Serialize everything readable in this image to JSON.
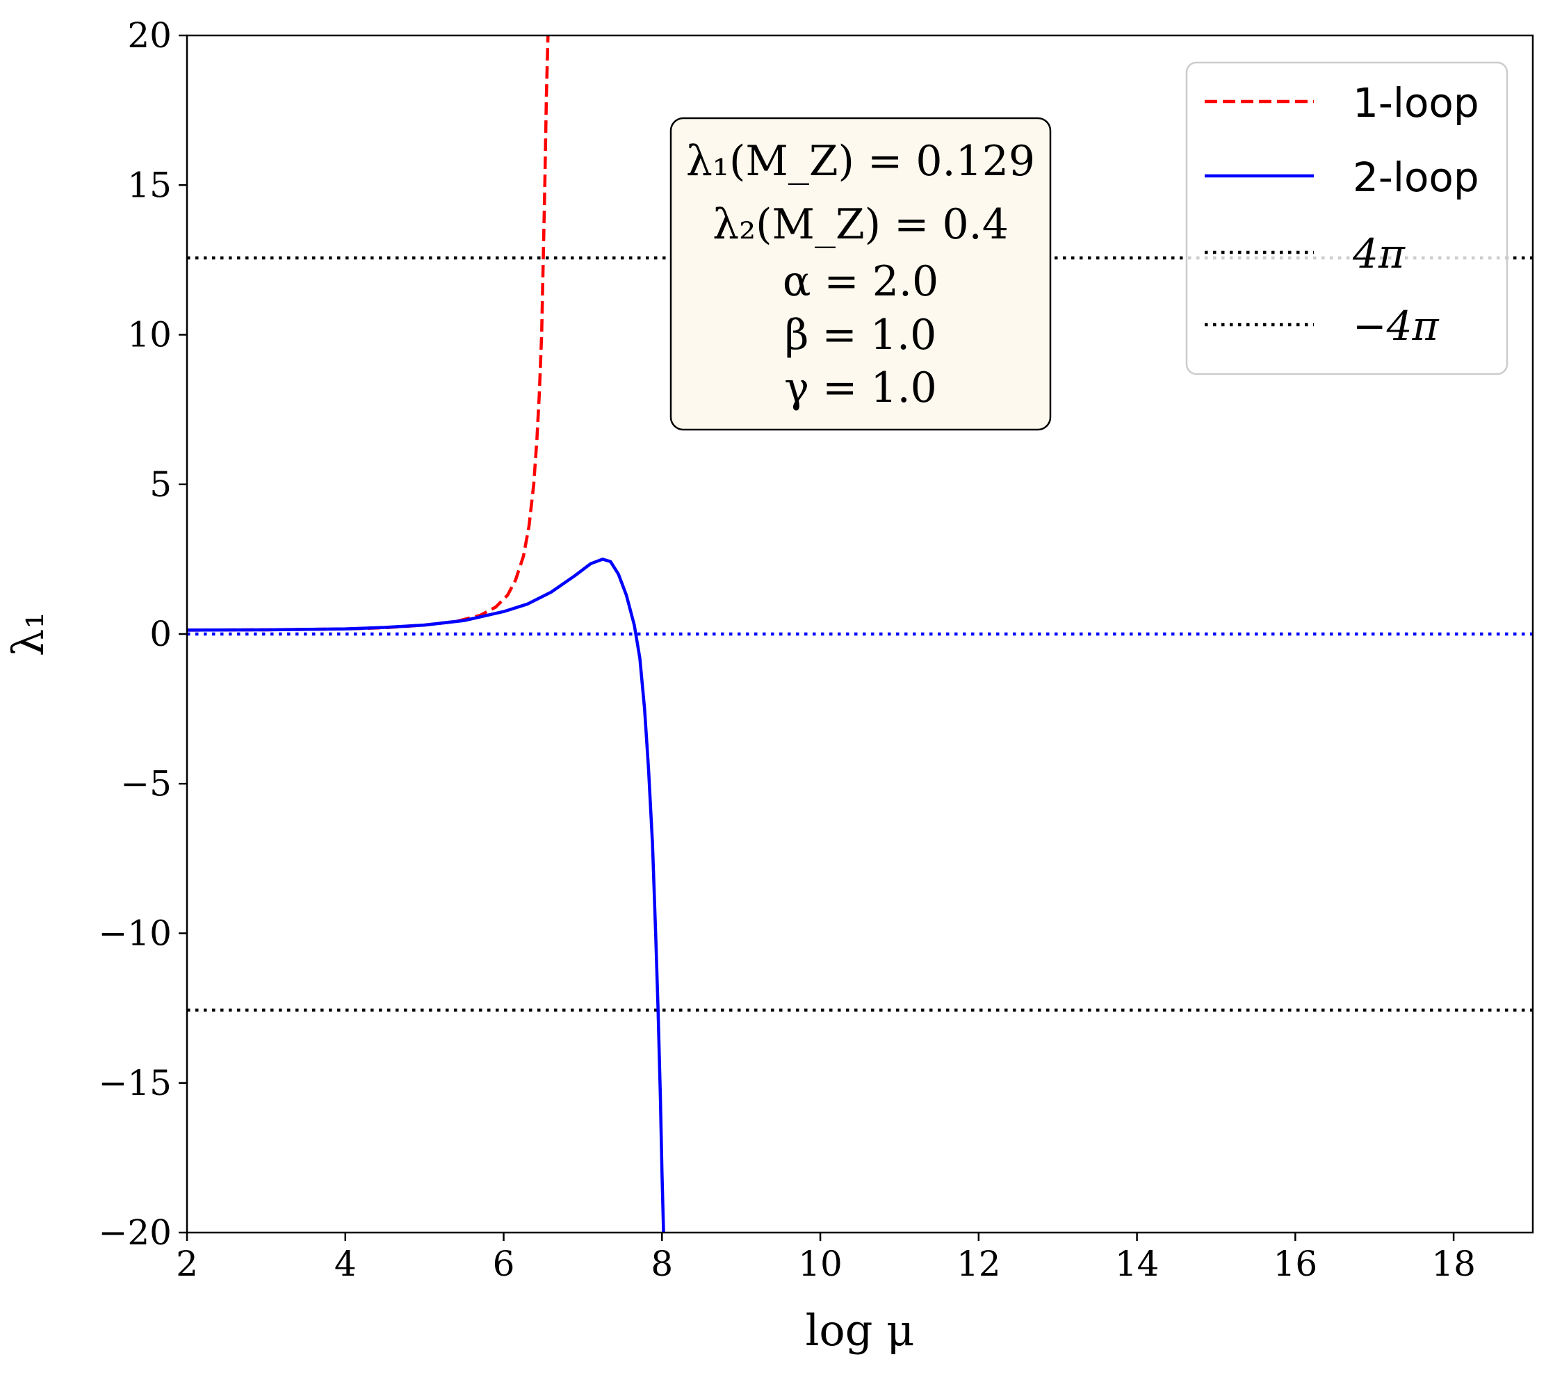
{
  "chart_data": {
    "type": "line",
    "xlabel": "log μ",
    "ylabel": "λ₁",
    "xlim": [
      2,
      19
    ],
    "ylim": [
      -20,
      20
    ],
    "xticks": [
      2,
      4,
      6,
      8,
      10,
      12,
      14,
      16,
      18
    ],
    "yticks": [
      -20,
      -15,
      -10,
      -5,
      0,
      5,
      10,
      15,
      20
    ],
    "xtick_labels": [
      "2",
      "4",
      "6",
      "8",
      "10",
      "12",
      "14",
      "16",
      "18"
    ],
    "ytick_labels": [
      "−20",
      "−15",
      "−10",
      "−5",
      "0",
      "5",
      "10",
      "15",
      "20"
    ],
    "grid": false,
    "legend_position": "top-right",
    "colors": {
      "one_loop": "#ff0000",
      "two_loop": "#0000ff",
      "bounds": "#000000",
      "zero_line": "#0000ff",
      "box_fill": "#fdf9ee"
    },
    "series": [
      {
        "name": "1-loop",
        "style": "dashed",
        "x": [
          2.0,
          3.0,
          4.0,
          4.5,
          5.0,
          5.4,
          5.7,
          5.9,
          6.05,
          6.15,
          6.25,
          6.32,
          6.38,
          6.42,
          6.45,
          6.48,
          6.5,
          6.52,
          6.54,
          6.56
        ],
        "y": [
          0.13,
          0.14,
          0.17,
          0.21,
          0.3,
          0.42,
          0.62,
          0.9,
          1.3,
          1.8,
          2.6,
          3.6,
          5.0,
          6.5,
          8.0,
          10.0,
          12.5,
          15.0,
          18.0,
          20.0
        ]
      },
      {
        "name": "2-loop",
        "style": "solid",
        "x": [
          2.0,
          3.0,
          4.0,
          4.5,
          5.0,
          5.5,
          6.0,
          6.3,
          6.6,
          6.9,
          7.1,
          7.25,
          7.35,
          7.45,
          7.55,
          7.65,
          7.72,
          7.78,
          7.83,
          7.88,
          7.92,
          7.95,
          7.98,
          8.0,
          8.02
        ],
        "y": [
          0.13,
          0.14,
          0.17,
          0.22,
          0.3,
          0.45,
          0.75,
          1.0,
          1.4,
          1.95,
          2.35,
          2.5,
          2.42,
          2.0,
          1.3,
          0.3,
          -0.8,
          -2.5,
          -4.5,
          -7.0,
          -10.0,
          -12.5,
          -15.5,
          -18.0,
          -20.0
        ]
      },
      {
        "name": "4π",
        "style": "dotted",
        "x": [
          2,
          19
        ],
        "y": [
          12.566,
          12.566
        ]
      },
      {
        "name": "−4π",
        "style": "dotted",
        "x": [
          2,
          19
        ],
        "y": [
          -12.566,
          -12.566
        ]
      },
      {
        "style": "dotted",
        "x": [
          2,
          19
        ],
        "y": [
          0,
          0
        ]
      }
    ],
    "legend": [
      {
        "label": "1-loop",
        "style": "dashed",
        "color": "#ff0000"
      },
      {
        "label": "2-loop",
        "style": "solid",
        "color": "#0000ff"
      },
      {
        "label": "4π",
        "style": "dotted",
        "color": "#000000"
      },
      {
        "label": "−4π",
        "style": "dotted",
        "color": "#000000"
      }
    ],
    "annotation": {
      "lines": [
        "λ₁(M_Z) = 0.129",
        "λ₂(M_Z) = 0.4",
        "α = 2.0",
        "β = 1.0",
        "γ = 1.0"
      ]
    }
  }
}
